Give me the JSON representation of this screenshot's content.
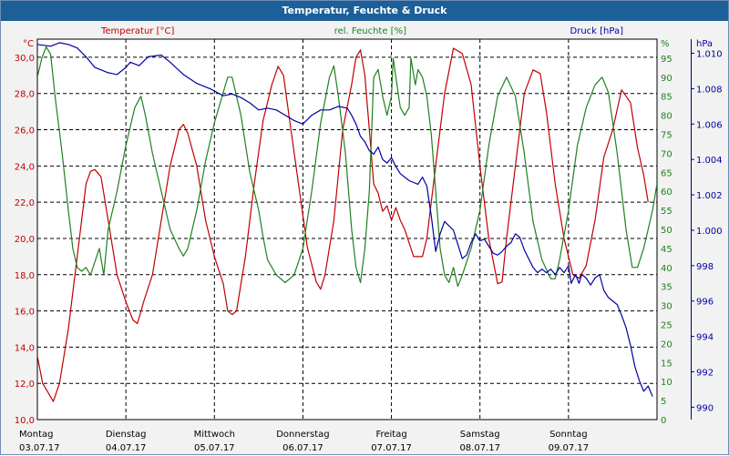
{
  "window": {
    "title": "Temperatur, Feuchte & Druck"
  },
  "colors": {
    "temperature": "#c00000",
    "humidity": "#208020",
    "pressure": "#0000a0",
    "grid": "#000000"
  },
  "chart_data": {
    "type": "line",
    "title": "Temperatur, Feuchte & Druck",
    "x_categories": [
      {
        "day": "Montag",
        "date": "03.07.17"
      },
      {
        "day": "Dienstag",
        "date": "04.07.17"
      },
      {
        "day": "Mittwoch",
        "date": "05.07.17"
      },
      {
        "day": "Donnerstag",
        "date": "06.07.17"
      },
      {
        "day": "Freitag",
        "date": "07.07.17"
      },
      {
        "day": "Samstag",
        "date": "08.07.17"
      },
      {
        "day": "Sonntag",
        "date": "09.07.17"
      }
    ],
    "x_range_days": [
      0,
      7
    ],
    "grid": true,
    "axes": {
      "temperature": {
        "unit_label": "°C",
        "range": [
          10,
          31
        ],
        "ticks": [
          "10,0",
          "12,0",
          "14,0",
          "16,0",
          "18,0",
          "20,0",
          "22,0",
          "24,0",
          "26,0",
          "28,0",
          "30,0"
        ]
      },
      "humidity": {
        "unit_label": "%",
        "range": [
          0,
          100
        ],
        "ticks": [
          "0",
          "5",
          "10",
          "15",
          "20",
          "25",
          "30",
          "35",
          "40",
          "45",
          "50",
          "55",
          "60",
          "65",
          "70",
          "75",
          "80",
          "85",
          "90",
          "95"
        ]
      },
      "pressure": {
        "unit_label": "hPa",
        "range": [
          989.3,
          1010.8
        ],
        "ticks": [
          "990",
          "992",
          "994",
          "996",
          "998",
          "1.000",
          "1.002",
          "1.004",
          "1.006",
          "1.008",
          "1.010"
        ]
      }
    },
    "series": [
      {
        "name": "Temperatur [°C]",
        "axis": "temperature",
        "points": [
          [
            0,
            13.5
          ],
          [
            0.06,
            12
          ],
          [
            0.12,
            11.5
          ],
          [
            0.18,
            11
          ],
          [
            0.25,
            12
          ],
          [
            0.35,
            15
          ],
          [
            0.45,
            19
          ],
          [
            0.5,
            21
          ],
          [
            0.55,
            23
          ],
          [
            0.6,
            23.7
          ],
          [
            0.65,
            23.8
          ],
          [
            0.72,
            23.4
          ],
          [
            0.8,
            21
          ],
          [
            0.9,
            18
          ],
          [
            1.0,
            16.5
          ],
          [
            1.08,
            15.5
          ],
          [
            1.13,
            15.3
          ],
          [
            1.2,
            16.5
          ],
          [
            1.3,
            18
          ],
          [
            1.4,
            21
          ],
          [
            1.5,
            24
          ],
          [
            1.6,
            26
          ],
          [
            1.65,
            26.3
          ],
          [
            1.7,
            25.8
          ],
          [
            1.8,
            24
          ],
          [
            1.9,
            21
          ],
          [
            2.0,
            19
          ],
          [
            2.1,
            17.5
          ],
          [
            2.15,
            16
          ],
          [
            2.2,
            15.8
          ],
          [
            2.25,
            16
          ],
          [
            2.35,
            19
          ],
          [
            2.45,
            23
          ],
          [
            2.55,
            26.5
          ],
          [
            2.65,
            28.5
          ],
          [
            2.72,
            29.5
          ],
          [
            2.78,
            29
          ],
          [
            2.85,
            26.5
          ],
          [
            2.95,
            23
          ],
          [
            3.05,
            19.5
          ],
          [
            3.15,
            17.6
          ],
          [
            3.2,
            17.2
          ],
          [
            3.25,
            18
          ],
          [
            3.35,
            21
          ],
          [
            3.45,
            26
          ],
          [
            3.55,
            28.5
          ],
          [
            3.6,
            30
          ],
          [
            3.65,
            30.4
          ],
          [
            3.7,
            29
          ],
          [
            3.75,
            26
          ],
          [
            3.8,
            23
          ],
          [
            3.85,
            22.5
          ],
          [
            3.9,
            21.5
          ],
          [
            3.95,
            21.8
          ],
          [
            4.0,
            21
          ],
          [
            4.05,
            21.7
          ],
          [
            4.1,
            21
          ],
          [
            4.15,
            20.5
          ],
          [
            4.25,
            19
          ],
          [
            4.35,
            19
          ],
          [
            4.4,
            20
          ],
          [
            4.5,
            24
          ],
          [
            4.6,
            28
          ],
          [
            4.7,
            30.5
          ],
          [
            4.8,
            30.2
          ],
          [
            4.9,
            28.5
          ],
          [
            5.0,
            24
          ],
          [
            5.1,
            20
          ],
          [
            5.2,
            17.5
          ],
          [
            5.25,
            17.6
          ],
          [
            5.3,
            20
          ],
          [
            5.4,
            24
          ],
          [
            5.5,
            28
          ],
          [
            5.6,
            29.3
          ],
          [
            5.68,
            29.1
          ],
          [
            5.75,
            27
          ],
          [
            5.85,
            23
          ],
          [
            5.95,
            20
          ],
          [
            6.05,
            18
          ],
          [
            6.12,
            17.8
          ],
          [
            6.2,
            18.5
          ],
          [
            6.3,
            21
          ],
          [
            6.4,
            24.5
          ],
          [
            6.5,
            26
          ],
          [
            6.6,
            28.2
          ],
          [
            6.7,
            27.5
          ],
          [
            6.78,
            25
          ],
          [
            6.85,
            23.5
          ],
          [
            6.9,
            22
          ]
        ]
      },
      {
        "name": "rel. Feuchte [%]",
        "axis": "humidity",
        "points": [
          [
            0,
            90
          ],
          [
            0.05,
            95
          ],
          [
            0.1,
            98
          ],
          [
            0.15,
            96
          ],
          [
            0.2,
            85
          ],
          [
            0.28,
            70
          ],
          [
            0.35,
            55
          ],
          [
            0.4,
            45
          ],
          [
            0.45,
            40
          ],
          [
            0.5,
            39
          ],
          [
            0.55,
            40
          ],
          [
            0.6,
            38
          ],
          [
            0.7,
            45
          ],
          [
            0.75,
            38
          ],
          [
            0.8,
            50
          ],
          [
            0.9,
            60
          ],
          [
            1.0,
            72
          ],
          [
            1.1,
            82
          ],
          [
            1.17,
            85
          ],
          [
            1.22,
            80
          ],
          [
            1.3,
            70
          ],
          [
            1.4,
            60
          ],
          [
            1.5,
            50
          ],
          [
            1.6,
            45
          ],
          [
            1.65,
            43
          ],
          [
            1.7,
            45
          ],
          [
            1.8,
            55
          ],
          [
            1.9,
            68
          ],
          [
            2.0,
            78
          ],
          [
            2.1,
            86
          ],
          [
            2.15,
            90
          ],
          [
            2.2,
            90
          ],
          [
            2.3,
            80
          ],
          [
            2.4,
            65
          ],
          [
            2.5,
            55
          ],
          [
            2.55,
            48
          ],
          [
            2.6,
            42
          ],
          [
            2.7,
            38
          ],
          [
            2.8,
            36
          ],
          [
            2.9,
            38
          ],
          [
            3.0,
            45
          ],
          [
            3.1,
            60
          ],
          [
            3.2,
            78
          ],
          [
            3.3,
            90
          ],
          [
            3.35,
            93
          ],
          [
            3.4,
            85
          ],
          [
            3.48,
            70
          ],
          [
            3.55,
            50
          ],
          [
            3.6,
            40
          ],
          [
            3.65,
            36
          ],
          [
            3.7,
            45
          ],
          [
            3.75,
            60
          ],
          [
            3.8,
            90
          ],
          [
            3.85,
            92
          ],
          [
            3.9,
            85
          ],
          [
            3.95,
            80
          ],
          [
            4.0,
            85
          ],
          [
            4.02,
            95
          ],
          [
            4.05,
            90
          ],
          [
            4.1,
            82
          ],
          [
            4.15,
            80
          ],
          [
            4.2,
            82
          ],
          [
            4.22,
            95
          ],
          [
            4.27,
            88
          ],
          [
            4.3,
            92
          ],
          [
            4.35,
            90
          ],
          [
            4.4,
            85
          ],
          [
            4.45,
            75
          ],
          [
            4.5,
            60
          ],
          [
            4.55,
            45
          ],
          [
            4.6,
            38
          ],
          [
            4.65,
            36
          ],
          [
            4.7,
            40
          ],
          [
            4.75,
            35
          ],
          [
            4.8,
            38
          ],
          [
            4.9,
            45
          ],
          [
            5.0,
            55
          ],
          [
            5.1,
            72
          ],
          [
            5.2,
            85
          ],
          [
            5.3,
            90
          ],
          [
            5.4,
            85
          ],
          [
            5.5,
            70
          ],
          [
            5.6,
            52
          ],
          [
            5.7,
            42
          ],
          [
            5.8,
            37
          ],
          [
            5.85,
            37
          ],
          [
            5.9,
            42
          ],
          [
            6.0,
            55
          ],
          [
            6.1,
            72
          ],
          [
            6.2,
            82
          ],
          [
            6.3,
            88
          ],
          [
            6.38,
            90
          ],
          [
            6.45,
            86
          ],
          [
            6.55,
            70
          ],
          [
            6.65,
            50
          ],
          [
            6.72,
            40
          ],
          [
            6.78,
            40
          ],
          [
            6.85,
            45
          ],
          [
            6.9,
            50
          ],
          [
            6.95,
            55
          ],
          [
            7.0,
            62
          ]
        ]
      },
      {
        "name": "Druck [hPa]",
        "axis": "pressure",
        "points": [
          [
            0,
            1010.5
          ],
          [
            0.15,
            1010.4
          ],
          [
            0.25,
            1010.6
          ],
          [
            0.35,
            1010.5
          ],
          [
            0.45,
            1010.3
          ],
          [
            0.55,
            1009.8
          ],
          [
            0.65,
            1009.2
          ],
          [
            0.8,
            1008.9
          ],
          [
            0.9,
            1008.8
          ],
          [
            1.0,
            1009.2
          ],
          [
            1.05,
            1009.5
          ],
          [
            1.15,
            1009.3
          ],
          [
            1.25,
            1009.8
          ],
          [
            1.4,
            1009.9
          ],
          [
            1.5,
            1009.5
          ],
          [
            1.65,
            1008.8
          ],
          [
            1.8,
            1008.3
          ],
          [
            1.95,
            1008.0
          ],
          [
            2.1,
            1007.6
          ],
          [
            2.2,
            1007.7
          ],
          [
            2.3,
            1007.5
          ],
          [
            2.4,
            1007.2
          ],
          [
            2.5,
            1006.8
          ],
          [
            2.6,
            1006.9
          ],
          [
            2.7,
            1006.8
          ],
          [
            2.8,
            1006.5
          ],
          [
            2.9,
            1006.2
          ],
          [
            3.0,
            1006.0
          ],
          [
            3.1,
            1006.5
          ],
          [
            3.2,
            1006.8
          ],
          [
            3.3,
            1006.8
          ],
          [
            3.4,
            1007.0
          ],
          [
            3.5,
            1006.9
          ],
          [
            3.55,
            1006.5
          ],
          [
            3.6,
            1006.0
          ],
          [
            3.65,
            1005.3
          ],
          [
            3.7,
            1005.0
          ],
          [
            3.75,
            1004.5
          ],
          [
            3.8,
            1004.3
          ],
          [
            3.85,
            1004.7
          ],
          [
            3.9,
            1004.0
          ],
          [
            3.95,
            1003.8
          ],
          [
            4.0,
            1004.1
          ],
          [
            4.05,
            1003.6
          ],
          [
            4.1,
            1003.2
          ],
          [
            4.2,
            1002.8
          ],
          [
            4.3,
            1002.6
          ],
          [
            4.35,
            1003.0
          ],
          [
            4.4,
            1002.5
          ],
          [
            4.45,
            1000.8
          ],
          [
            4.5,
            998.8
          ],
          [
            4.55,
            999.8
          ],
          [
            4.6,
            1000.5
          ],
          [
            4.7,
            1000.0
          ],
          [
            4.8,
            998.4
          ],
          [
            4.85,
            998.6
          ],
          [
            4.9,
            999.3
          ],
          [
            4.95,
            999.8
          ],
          [
            5.0,
            999.4
          ],
          [
            5.05,
            999.5
          ],
          [
            5.1,
            999.1
          ],
          [
            5.15,
            998.7
          ],
          [
            5.2,
            998.6
          ],
          [
            5.25,
            998.8
          ],
          [
            5.3,
            999.1
          ],
          [
            5.35,
            999.3
          ],
          [
            5.4,
            999.8
          ],
          [
            5.45,
            999.6
          ],
          [
            5.5,
            998.9
          ],
          [
            5.55,
            998.4
          ],
          [
            5.6,
            997.9
          ],
          [
            5.65,
            997.6
          ],
          [
            5.7,
            997.8
          ],
          [
            5.75,
            997.6
          ],
          [
            5.8,
            997.8
          ],
          [
            5.85,
            997.5
          ],
          [
            5.9,
            997.9
          ],
          [
            5.95,
            997.6
          ],
          [
            6.0,
            998.0
          ],
          [
            6.03,
            997.0
          ],
          [
            6.08,
            997.5
          ],
          [
            6.12,
            997.0
          ],
          [
            6.15,
            997.5
          ],
          [
            6.2,
            997.3
          ],
          [
            6.25,
            996.9
          ],
          [
            6.3,
            997.3
          ],
          [
            6.35,
            997.5
          ],
          [
            6.4,
            996.6
          ],
          [
            6.45,
            996.2
          ],
          [
            6.55,
            995.8
          ],
          [
            6.6,
            995.2
          ],
          [
            6.65,
            994.5
          ],
          [
            6.7,
            993.5
          ],
          [
            6.75,
            992.3
          ],
          [
            6.8,
            991.5
          ],
          [
            6.85,
            990.9
          ],
          [
            6.9,
            991.2
          ],
          [
            6.95,
            990.6
          ]
        ]
      }
    ]
  }
}
